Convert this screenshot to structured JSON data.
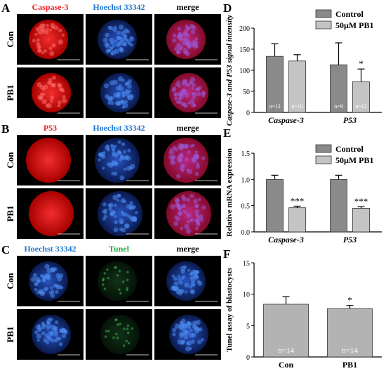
{
  "panels": {
    "A": {
      "label": "A",
      "headers": [
        "Caspase-3",
        "Hoechst 33342",
        "merge"
      ],
      "header_colors": [
        "#ee2222",
        "#1f78d0",
        "#000000"
      ],
      "rows": [
        "Con",
        "PB1"
      ]
    },
    "B": {
      "label": "B",
      "headers": [
        "P53",
        "Hoechst 33342",
        "merge"
      ],
      "header_colors": [
        "#ee2222",
        "#1f78d0",
        "#000000"
      ],
      "rows": [
        "Con",
        "PB1"
      ]
    },
    "C": {
      "label": "C",
      "headers": [
        "Hoechst 33342",
        "Tunel",
        "merge"
      ],
      "header_colors": [
        "#1f78d0",
        "#22aa44",
        "#000000"
      ],
      "rows": [
        "Con",
        "PB1"
      ]
    }
  },
  "chart_data": [
    {
      "id": "D",
      "type": "bar",
      "panel_label": "D",
      "categories": [
        "Caspase-3",
        "P53"
      ],
      "series": [
        {
          "name": "Control",
          "values": [
            133,
            113
          ],
          "errors": [
            30,
            52
          ],
          "n_labels": [
            "n=12",
            "n=9"
          ],
          "color": "#8a8a8a"
        },
        {
          "name": "50μM PB1",
          "values": [
            122,
            73
          ],
          "errors": [
            15,
            30
          ],
          "n_labels": [
            "n=10",
            "n=12"
          ],
          "color": "#c4c4c4"
        }
      ],
      "significance": [
        "",
        "*"
      ],
      "ylabel": "Caspase-3 and P53  signal  intensity",
      "ylim": [
        0,
        200
      ],
      "yticks": [
        0,
        50,
        100,
        150,
        200
      ],
      "legend_position": "top-right"
    },
    {
      "id": "E",
      "type": "bar",
      "panel_label": "E",
      "categories": [
        "Caspase-3",
        "P53"
      ],
      "series": [
        {
          "name": "Control",
          "values": [
            1.0,
            1.0
          ],
          "errors": [
            0.08,
            0.08
          ],
          "color": "#8a8a8a"
        },
        {
          "name": "50μM PB1",
          "values": [
            0.46,
            0.45
          ],
          "errors": [
            0.03,
            0.03
          ],
          "color": "#c4c4c4"
        }
      ],
      "significance": [
        "***",
        "***"
      ],
      "ylabel": "Relative  mRNA expression",
      "ylim": [
        0,
        1.5
      ],
      "yticks": [
        "0.0",
        "0.5",
        "1.0",
        "1.5"
      ],
      "legend_position": "top-right"
    },
    {
      "id": "F",
      "type": "bar",
      "panel_label": "F",
      "categories": [
        "Con",
        "PB1"
      ],
      "series": [
        {
          "name": "",
          "values": [
            8.4,
            7.7
          ],
          "errors": [
            1.2,
            0.5
          ],
          "n_labels": [
            "n=14",
            "n=14"
          ],
          "color": "#b3b3b3"
        }
      ],
      "significance": [
        "",
        "*"
      ],
      "ylabel": "Tunel assay of blastocysts",
      "ylim": [
        0,
        15
      ],
      "yticks": [
        0,
        5,
        10,
        15
      ]
    }
  ]
}
